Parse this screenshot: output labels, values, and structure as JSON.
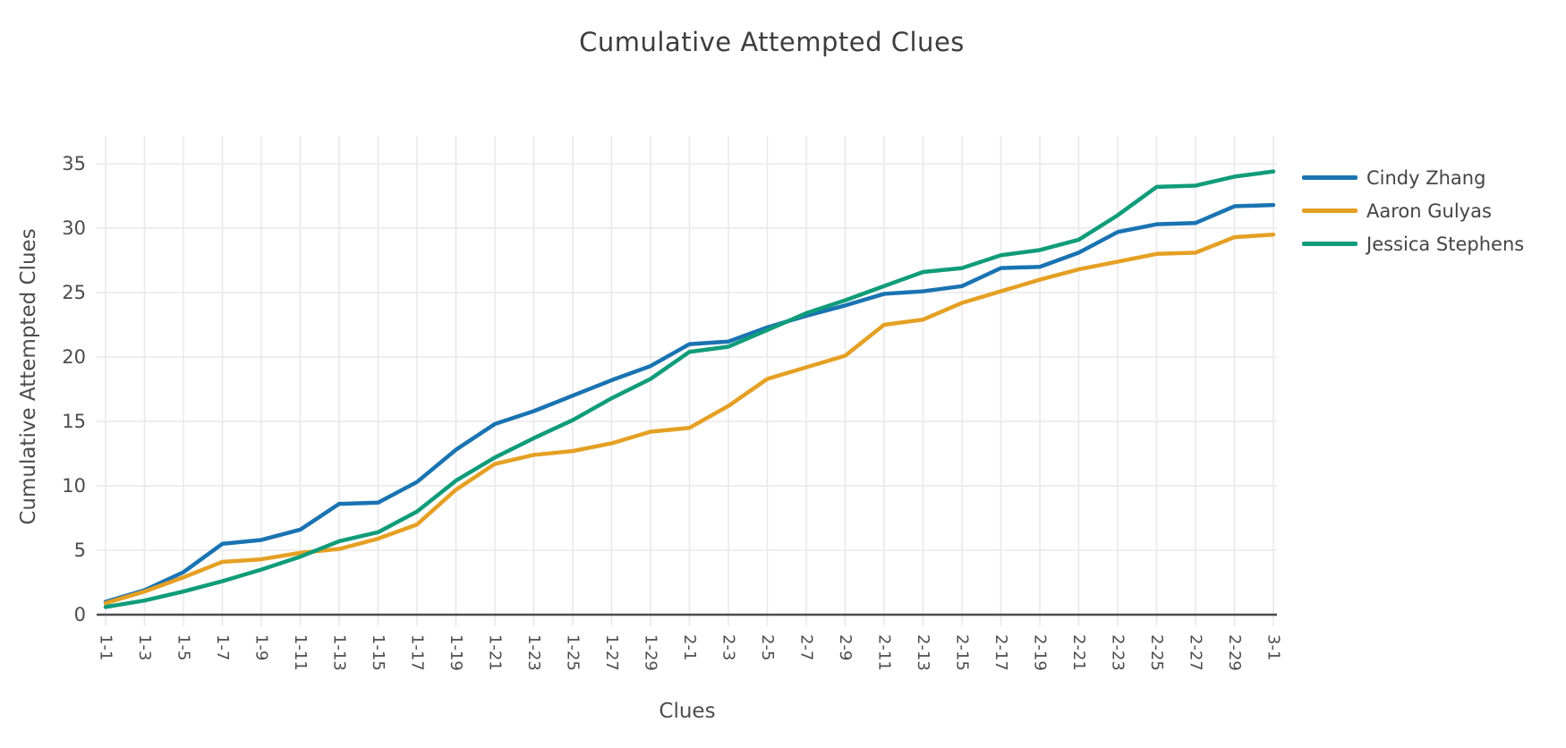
{
  "title": "Cumulative Attempted Clues",
  "colors": {
    "background": "#ffffff",
    "grid": "#e9e9e9",
    "axis_line": "#4d4d4d",
    "tick_text": "#4c4c4c",
    "title_text": "#3d3d3d",
    "legend_text": "#444444"
  },
  "chart_data": {
    "type": "line",
    "title": "Cumulative Attempted Clues",
    "xlabel": "Clues",
    "ylabel": "Cumulative Attempted Clues",
    "x_tick_labels": [
      "1-1",
      "1-3",
      "1-5",
      "1-7",
      "1-9",
      "1-11",
      "1-13",
      "1-15",
      "1-17",
      "1-19",
      "1-21",
      "1-23",
      "1-25",
      "1-27",
      "1-29",
      "2-1",
      "2-3",
      "2-5",
      "2-7",
      "2-9",
      "2-11",
      "2-13",
      "2-15",
      "2-17",
      "2-19",
      "2-21",
      "2-23",
      "2-25",
      "2-27",
      "2-29",
      "3-1"
    ],
    "x_tick_angle": 90,
    "y_ticks": [
      0,
      5,
      10,
      15,
      20,
      25,
      30,
      35
    ],
    "ylim": [
      0,
      37
    ],
    "grid": true,
    "legend_position": "right",
    "series": [
      {
        "name": "Cindy Zhang",
        "color": "#1a73b2",
        "values": [
          1.0,
          1.9,
          3.3,
          5.5,
          5.8,
          6.6,
          8.6,
          8.7,
          10.3,
          12.8,
          14.8,
          15.8,
          17.0,
          18.2,
          19.3,
          21.0,
          21.2,
          22.3,
          23.2,
          24.0,
          24.9,
          25.1,
          25.5,
          26.9,
          27.0,
          28.1,
          29.7,
          30.3,
          30.4,
          31.7,
          31.8
        ]
      },
      {
        "name": "Aaron Gulyas",
        "color": "#e5a023",
        "values": [
          0.9,
          1.8,
          2.9,
          4.1,
          4.3,
          4.8,
          5.1,
          5.9,
          7.0,
          9.7,
          11.7,
          12.4,
          12.7,
          13.3,
          14.2,
          14.5,
          16.2,
          18.3,
          19.2,
          20.1,
          22.5,
          22.9,
          24.2,
          25.1,
          26.0,
          26.8,
          27.4,
          28.0,
          28.1,
          29.3,
          29.5
        ]
      },
      {
        "name": "Jessica Stephens",
        "color": "#109c7a",
        "values": [
          0.6,
          1.1,
          1.8,
          2.6,
          3.5,
          4.5,
          5.7,
          6.4,
          8.0,
          10.4,
          12.2,
          13.7,
          15.1,
          16.8,
          18.3,
          20.4,
          20.8,
          22.1,
          23.4,
          24.4,
          25.5,
          26.6,
          26.9,
          27.9,
          28.3,
          29.1,
          31.0,
          33.2,
          33.3,
          34.0,
          34.4
        ]
      }
    ]
  }
}
